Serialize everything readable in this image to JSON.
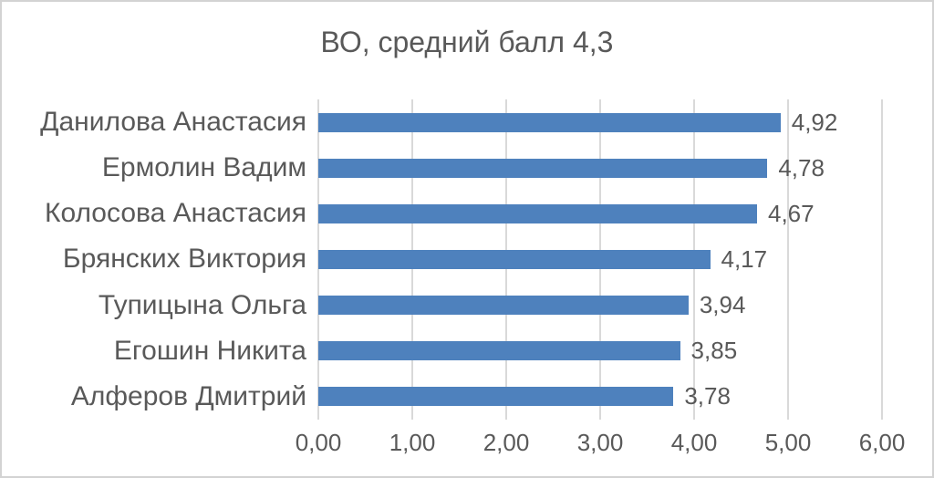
{
  "window": {
    "background": "#ffffff",
    "border_color": "#d3d3d3"
  },
  "chart_data": {
    "type": "bar",
    "orientation": "horizontal",
    "title": "ВО, средний балл 4,3",
    "categories": [
      "Данилова Анастасия",
      "Ермолин Вадим",
      "Колосова Анастасия",
      "Брянских Виктория",
      "Тупицына Ольга",
      "Егошин Никита",
      "Алферов Дмитрий"
    ],
    "values": [
      4.92,
      4.78,
      4.67,
      4.17,
      3.94,
      3.85,
      3.78
    ],
    "value_labels": [
      "4,92",
      "4,78",
      "4,67",
      "4,17",
      "3,94",
      "3,85",
      "3,78"
    ],
    "x_ticks": [
      "0,00",
      "1,00",
      "2,00",
      "3,00",
      "4,00",
      "5,00",
      "6,00"
    ],
    "xlim": [
      0,
      6
    ],
    "xlabel": "",
    "ylabel": "",
    "grid": true,
    "legend": "none",
    "bar_color": "#4e81bd",
    "text_color": "#595959",
    "gridline_color": "#d9d9d9"
  }
}
